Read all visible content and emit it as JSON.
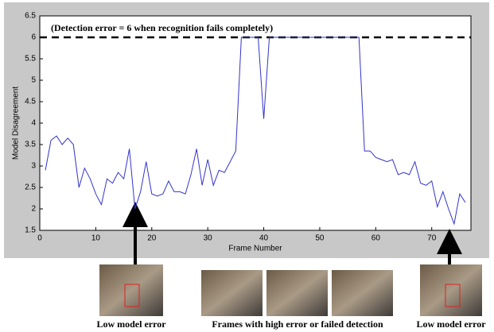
{
  "chart_data": {
    "type": "line",
    "annotation": "(Detection error = 6 when recognition fails completely)",
    "reference_line": 6,
    "x_label": "Frame Number",
    "y_label": "Model Disagreement",
    "x": [
      1,
      2,
      3,
      4,
      5,
      6,
      7,
      8,
      9,
      10,
      11,
      12,
      13,
      14,
      15,
      16,
      17,
      18,
      19,
      20,
      21,
      22,
      23,
      24,
      25,
      26,
      27,
      28,
      29,
      30,
      31,
      32,
      33,
      34,
      35,
      36,
      37,
      38,
      39,
      40,
      41,
      42,
      43,
      44,
      45,
      46,
      47,
      48,
      49,
      50,
      51,
      52,
      53,
      54,
      55,
      56,
      57,
      58,
      59,
      60,
      61,
      62,
      63,
      64,
      65,
      66,
      67,
      68,
      69,
      70,
      71,
      72,
      73,
      74,
      75,
      76
    ],
    "series": [
      {
        "color": "#3333cc",
        "values": [
          2.9,
          3.6,
          3.7,
          3.5,
          3.65,
          3.5,
          2.5,
          2.95,
          2.7,
          2.35,
          2.1,
          2.7,
          2.6,
          2.85,
          2.7,
          3.4,
          2.0,
          2.4,
          3.1,
          2.35,
          2.3,
          2.35,
          2.65,
          2.4,
          2.4,
          2.35,
          2.8,
          3.4,
          2.55,
          3.15,
          2.55,
          2.9,
          2.85,
          3.1,
          3.35,
          6,
          6,
          6,
          6,
          4.1,
          6,
          6,
          6,
          6,
          6,
          6,
          6,
          6,
          6,
          6,
          6,
          6,
          6,
          6,
          6,
          6,
          6,
          3.35,
          3.35,
          3.2,
          3.15,
          3.1,
          3.15,
          2.8,
          2.85,
          2.8,
          3.1,
          2.6,
          2.55,
          2.65,
          2.05,
          2.4,
          2.0,
          1.65,
          2.35,
          2.15
        ]
      }
    ],
    "xlim": [
      0,
      77
    ],
    "ylim": [
      1.5,
      6.5
    ],
    "xticks": [
      0,
      10,
      20,
      30,
      40,
      50,
      60,
      70
    ],
    "yticks": [
      1.5,
      2,
      2.5,
      3,
      3.5,
      4,
      4.5,
      5,
      5.5,
      6,
      6.5
    ],
    "captions": [
      "Low model error",
      "Frames with high error or failed detection",
      "Low model error"
    ]
  }
}
